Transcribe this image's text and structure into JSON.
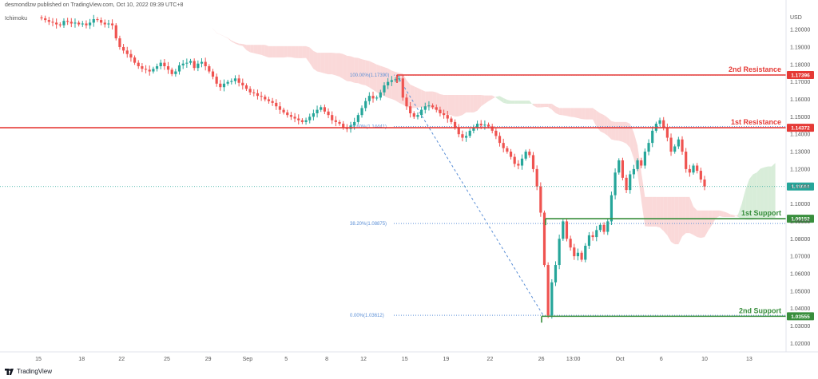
{
  "header": {
    "published": "desmondlzw published on TradingView.com, Oct 10, 2022 09:39 UTC+8",
    "indicator": "Ichimoku"
  },
  "footer": {
    "brand": "TradingView"
  },
  "colors": {
    "resistance": "#e53935",
    "support": "#388e3c",
    "cloud_bear": "#f8c9c9",
    "cloud_bull": "#c8e6c9",
    "candle_up": "#26a69a",
    "candle_down": "#ef5350",
    "fib": "#5b8fd6",
    "current": "#26a69a"
  },
  "chart_data": {
    "type": "candlestick",
    "symbol_currency": "USD",
    "ylim": [
      1.0165,
      1.2115
    ],
    "y_ticks": [
      "1.20000",
      "1.19000",
      "1.18000",
      "1.17000",
      "1.16000",
      "1.15000",
      "1.14000",
      "1.13000",
      "1.12000",
      "1.11000",
      "1.10000",
      "1.09000",
      "1.08000",
      "1.07000",
      "1.06000",
      "1.05000",
      "1.04000",
      "1.03000",
      "1.02000"
    ],
    "x_ticks": [
      "15",
      "18",
      "22",
      "25",
      "29",
      "Sep",
      "5",
      "8",
      "12",
      "15",
      "19",
      "22",
      "26",
      "13:00",
      "Oct",
      "6",
      "10",
      "13"
    ],
    "levels": [
      {
        "name": "2nd Resistance",
        "value": 1.17396,
        "label": "1.17396",
        "role": "resistance"
      },
      {
        "name": "1st Resistance",
        "value": 1.14372,
        "label": "1.14372",
        "role": "resistance"
      },
      {
        "name": "1st Support",
        "value": 1.09152,
        "label": "1.09152",
        "role": "support"
      },
      {
        "name": "2nd Support",
        "value": 1.03555,
        "label": "1.03555",
        "role": "support"
      }
    ],
    "current_price": {
      "value": 1.11,
      "label": "1.11000"
    },
    "fibonacci": [
      {
        "label": "100.00%(1.17390)",
        "value": 1.1739
      },
      {
        "label": "78.60%(1.14441)",
        "value": 1.14441
      },
      {
        "label": "38.20%(1.08875)",
        "value": 1.08875
      },
      {
        "label": "0.00%(1.03612)",
        "value": 1.03612
      }
    ],
    "closes": [
      1.2065,
      1.2055,
      1.2045,
      1.204,
      1.203,
      1.2025,
      1.205,
      1.2045,
      1.2035,
      1.204,
      1.203,
      1.2035,
      1.2025,
      1.204,
      1.206,
      1.2055,
      1.204,
      1.203,
      1.2035,
      1.2025,
      1.195,
      1.19,
      1.188,
      1.186,
      1.184,
      1.181,
      1.179,
      1.1775,
      1.177,
      1.176,
      1.1775,
      1.179,
      1.181,
      1.179,
      1.177,
      1.1745,
      1.176,
      1.1795,
      1.1805,
      1.181,
      1.182,
      1.178,
      1.1805,
      1.1815,
      1.179,
      1.176,
      1.173,
      1.169,
      1.167,
      1.169,
      1.17,
      1.1705,
      1.172,
      1.1695,
      1.168,
      1.166,
      1.164,
      1.1635,
      1.162,
      1.1615,
      1.16,
      1.159,
      1.158,
      1.156,
      1.154,
      1.1525,
      1.151,
      1.15,
      1.149,
      1.148,
      1.147,
      1.148,
      1.15,
      1.152,
      1.154,
      1.1555,
      1.153,
      1.151,
      1.148,
      1.147,
      1.146,
      1.144,
      1.143,
      1.145,
      1.147,
      1.151,
      1.155,
      1.159,
      1.162,
      1.1605,
      1.161,
      1.164,
      1.168,
      1.17,
      1.171,
      1.1715,
      1.172,
      1.161,
      1.156,
      1.152,
      1.15,
      1.151,
      1.154,
      1.156,
      1.1565,
      1.1555,
      1.154,
      1.152,
      1.151,
      1.149,
      1.147,
      1.144,
      1.14,
      1.138,
      1.139,
      1.142,
      1.144,
      1.146,
      1.145,
      1.1455,
      1.1445,
      1.142,
      1.139,
      1.135,
      1.132,
      1.13,
      1.127,
      1.123,
      1.122,
      1.126,
      1.13,
      1.128,
      1.12,
      1.11,
      1.095,
      1.065,
      1.036,
      1.055,
      1.065,
      1.08,
      1.09,
      1.08,
      1.075,
      1.07,
      1.072,
      1.068,
      1.076,
      1.082,
      1.081,
      1.085,
      1.088,
      1.084,
      1.09,
      1.105,
      1.118,
      1.125,
      1.115,
      1.108,
      1.117,
      1.12,
      1.125,
      1.122,
      1.13,
      1.135,
      1.142,
      1.146,
      1.148,
      1.144,
      1.138,
      1.13,
      1.133,
      1.137,
      1.13,
      1.12,
      1.118,
      1.122,
      1.119,
      1.114,
      1.11
    ]
  }
}
